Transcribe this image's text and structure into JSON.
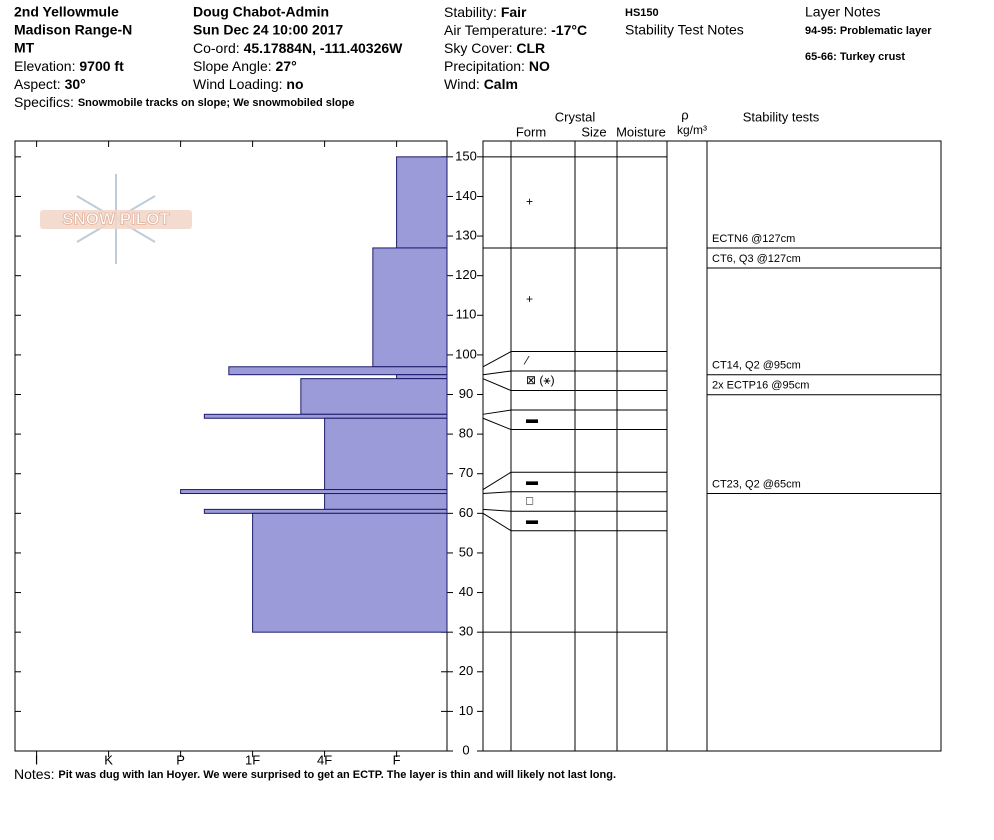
{
  "header": {
    "location": "2nd Yellowmule",
    "range": "Madison Range-N",
    "state": "MT",
    "elevation": {
      "label": "Elevation:",
      "value": "9700 ft"
    },
    "aspect": {
      "label": "Aspect:",
      "value": "30°"
    },
    "specifics": {
      "label": "Specifics:",
      "value": "Snowmobile tracks on slope; We snowmobiled slope"
    },
    "observer": "Doug Chabot-Admin",
    "date": "Sun Dec 24 10:00 2017",
    "coord": {
      "label": "Co-ord:",
      "value": "45.17884N, -111.40326W"
    },
    "slope_angle": {
      "label": "Slope Angle:",
      "value": "27°"
    },
    "wind_loading": {
      "label": "Wind Loading:",
      "value": "no"
    },
    "stability": {
      "label": "Stability:",
      "value": "Fair"
    },
    "air_temperature": {
      "label": "Air Temperature:",
      "value": "-17°C"
    },
    "sky_cover": {
      "label": "Sky Cover:",
      "value": "CLR"
    },
    "precipitation": {
      "label": "Precipitation:",
      "value": "NO"
    },
    "wind": {
      "label": "Wind:",
      "value": "Calm"
    },
    "hs": "HS150",
    "stability_test_notes": "Stability Test Notes",
    "layer_notes_title": "Layer Notes",
    "layer_notes": [
      "94-95: Problematic layer",
      "65-66: Turkey crust"
    ]
  },
  "columns": {
    "crystal": "Crystal",
    "form": "Form",
    "size": "Size",
    "moisture": "Moisture",
    "rho": "ρ",
    "density_unit": "kg/m³",
    "stability_tests": "Stability tests"
  },
  "logo": "SNOW PILOT",
  "notes": {
    "label": "Notes:",
    "value": "Pit was dug with Ian Hoyer. We were surprised to get an ECTP. The layer is thin and will likely not last long."
  },
  "chart_data": {
    "type": "hardness",
    "color": "#9b9bd9",
    "xlim": [
      0.3,
      6.3
    ],
    "x_reversed": true,
    "xticks": [
      {
        "value": 6,
        "label": "I"
      },
      {
        "value": 5,
        "label": "K"
      },
      {
        "value": 4,
        "label": "P"
      },
      {
        "value": 3,
        "label": "1F"
      },
      {
        "value": 2,
        "label": "4F"
      },
      {
        "value": 1,
        "label": "F"
      }
    ],
    "ylim": [
      0,
      154
    ],
    "yticks": [
      0,
      10,
      20,
      30,
      40,
      50,
      60,
      70,
      80,
      90,
      100,
      110,
      120,
      130,
      140,
      150
    ],
    "layers": [
      {
        "top": 150,
        "bottom": 127,
        "hardness": 1,
        "form": "+"
      },
      {
        "top": 127,
        "bottom": 97,
        "hardness": 1.33,
        "form": "+"
      },
      {
        "top": 97,
        "bottom": 95,
        "hardness": 3.33,
        "form": "⁄"
      },
      {
        "top": 95,
        "bottom": 94,
        "hardness": 1,
        "form": "⊠ (⚹)"
      },
      {
        "top": 94,
        "bottom": 85,
        "hardness": 2.33,
        "form": null
      },
      {
        "top": 85,
        "bottom": 84,
        "hardness": 3.67,
        "form": "▬"
      },
      {
        "top": 84,
        "bottom": 66,
        "hardness": 2,
        "form": null
      },
      {
        "top": 66,
        "bottom": 65,
        "hardness": 4,
        "form": "▬"
      },
      {
        "top": 65,
        "bottom": 61,
        "hardness": 2,
        "form": "□"
      },
      {
        "top": 61,
        "bottom": 60,
        "hardness": 3.67,
        "form": "▬"
      },
      {
        "top": 60,
        "bottom": 30,
        "hardness": 3,
        "form": null
      }
    ],
    "tests": [
      {
        "label": "ECTN6 @127cm",
        "height": 127
      },
      {
        "label": "CT6, Q3 @127cm",
        "height": 127
      },
      {
        "label": "CT14, Q2 @95cm",
        "height": 95
      },
      {
        "label": "2x ECTP16 @95cm",
        "height": 95
      },
      {
        "label": "CT23, Q2 @65cm",
        "height": 65
      }
    ]
  }
}
